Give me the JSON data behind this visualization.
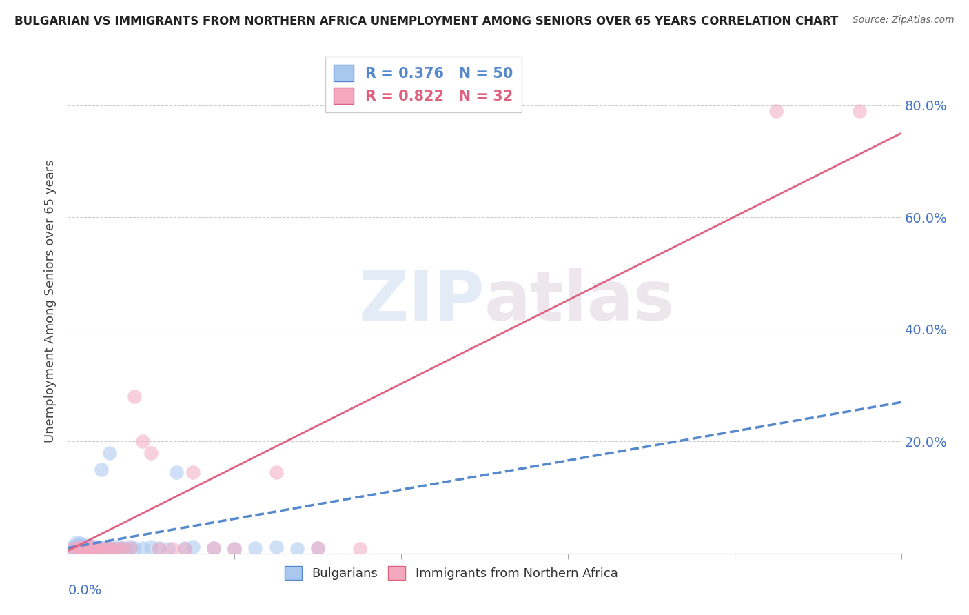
{
  "title": "BULGARIAN VS IMMIGRANTS FROM NORTHERN AFRICA UNEMPLOYMENT AMONG SENIORS OVER 65 YEARS CORRELATION CHART",
  "source": "Source: ZipAtlas.com",
  "ylabel": "Unemployment Among Seniors over 65 years",
  "xlim": [
    0.0,
    0.2
  ],
  "ylim": [
    0.0,
    0.9
  ],
  "legend_blue_R": "R = 0.376",
  "legend_blue_N": "N = 50",
  "legend_pink_R": "R = 0.822",
  "legend_pink_N": "N = 32",
  "legend_label_blue": "Bulgarians",
  "legend_label_pink": "Immigrants from Northern Africa",
  "blue_color": "#A8C8F0",
  "pink_color": "#F4A8C0",
  "blue_line_color": "#5588CC",
  "pink_line_color": "#E06080",
  "watermark_zip": "ZIP",
  "watermark_atlas": "atlas",
  "blue_scatter_x": [
    0.001,
    0.001,
    0.002,
    0.002,
    0.002,
    0.002,
    0.003,
    0.003,
    0.003,
    0.003,
    0.003,
    0.004,
    0.004,
    0.004,
    0.004,
    0.005,
    0.005,
    0.005,
    0.005,
    0.006,
    0.006,
    0.006,
    0.007,
    0.007,
    0.007,
    0.008,
    0.008,
    0.009,
    0.009,
    0.01,
    0.01,
    0.011,
    0.012,
    0.013,
    0.014,
    0.015,
    0.016,
    0.018,
    0.02,
    0.022,
    0.024,
    0.026,
    0.028,
    0.03,
    0.035,
    0.04,
    0.045,
    0.05,
    0.055,
    0.06
  ],
  "blue_scatter_y": [
    0.008,
    0.012,
    0.01,
    0.015,
    0.008,
    0.02,
    0.01,
    0.012,
    0.015,
    0.008,
    0.018,
    0.01,
    0.012,
    0.015,
    0.008,
    0.01,
    0.015,
    0.008,
    0.012,
    0.01,
    0.012,
    0.008,
    0.01,
    0.008,
    0.012,
    0.15,
    0.01,
    0.008,
    0.012,
    0.01,
    0.18,
    0.01,
    0.012,
    0.01,
    0.008,
    0.012,
    0.01,
    0.01,
    0.012,
    0.01,
    0.008,
    0.145,
    0.01,
    0.012,
    0.01,
    0.008,
    0.01,
    0.012,
    0.008,
    0.01
  ],
  "pink_scatter_x": [
    0.001,
    0.002,
    0.003,
    0.003,
    0.004,
    0.004,
    0.005,
    0.005,
    0.006,
    0.007,
    0.007,
    0.008,
    0.009,
    0.01,
    0.011,
    0.012,
    0.013,
    0.015,
    0.016,
    0.018,
    0.02,
    0.022,
    0.025,
    0.028,
    0.03,
    0.035,
    0.04,
    0.05,
    0.06,
    0.07,
    0.17,
    0.19
  ],
  "pink_scatter_y": [
    0.008,
    0.01,
    0.012,
    0.008,
    0.01,
    0.008,
    0.008,
    0.01,
    0.012,
    0.008,
    0.01,
    0.008,
    0.008,
    0.01,
    0.008,
    0.008,
    0.01,
    0.01,
    0.28,
    0.2,
    0.18,
    0.008,
    0.008,
    0.008,
    0.145,
    0.01,
    0.008,
    0.145,
    0.01,
    0.008,
    0.79,
    0.79
  ],
  "blue_line_x": [
    0.0,
    0.2
  ],
  "blue_line_y": [
    0.01,
    0.27
  ],
  "pink_line_x": [
    0.0,
    0.2
  ],
  "pink_line_y": [
    0.005,
    0.75
  ]
}
